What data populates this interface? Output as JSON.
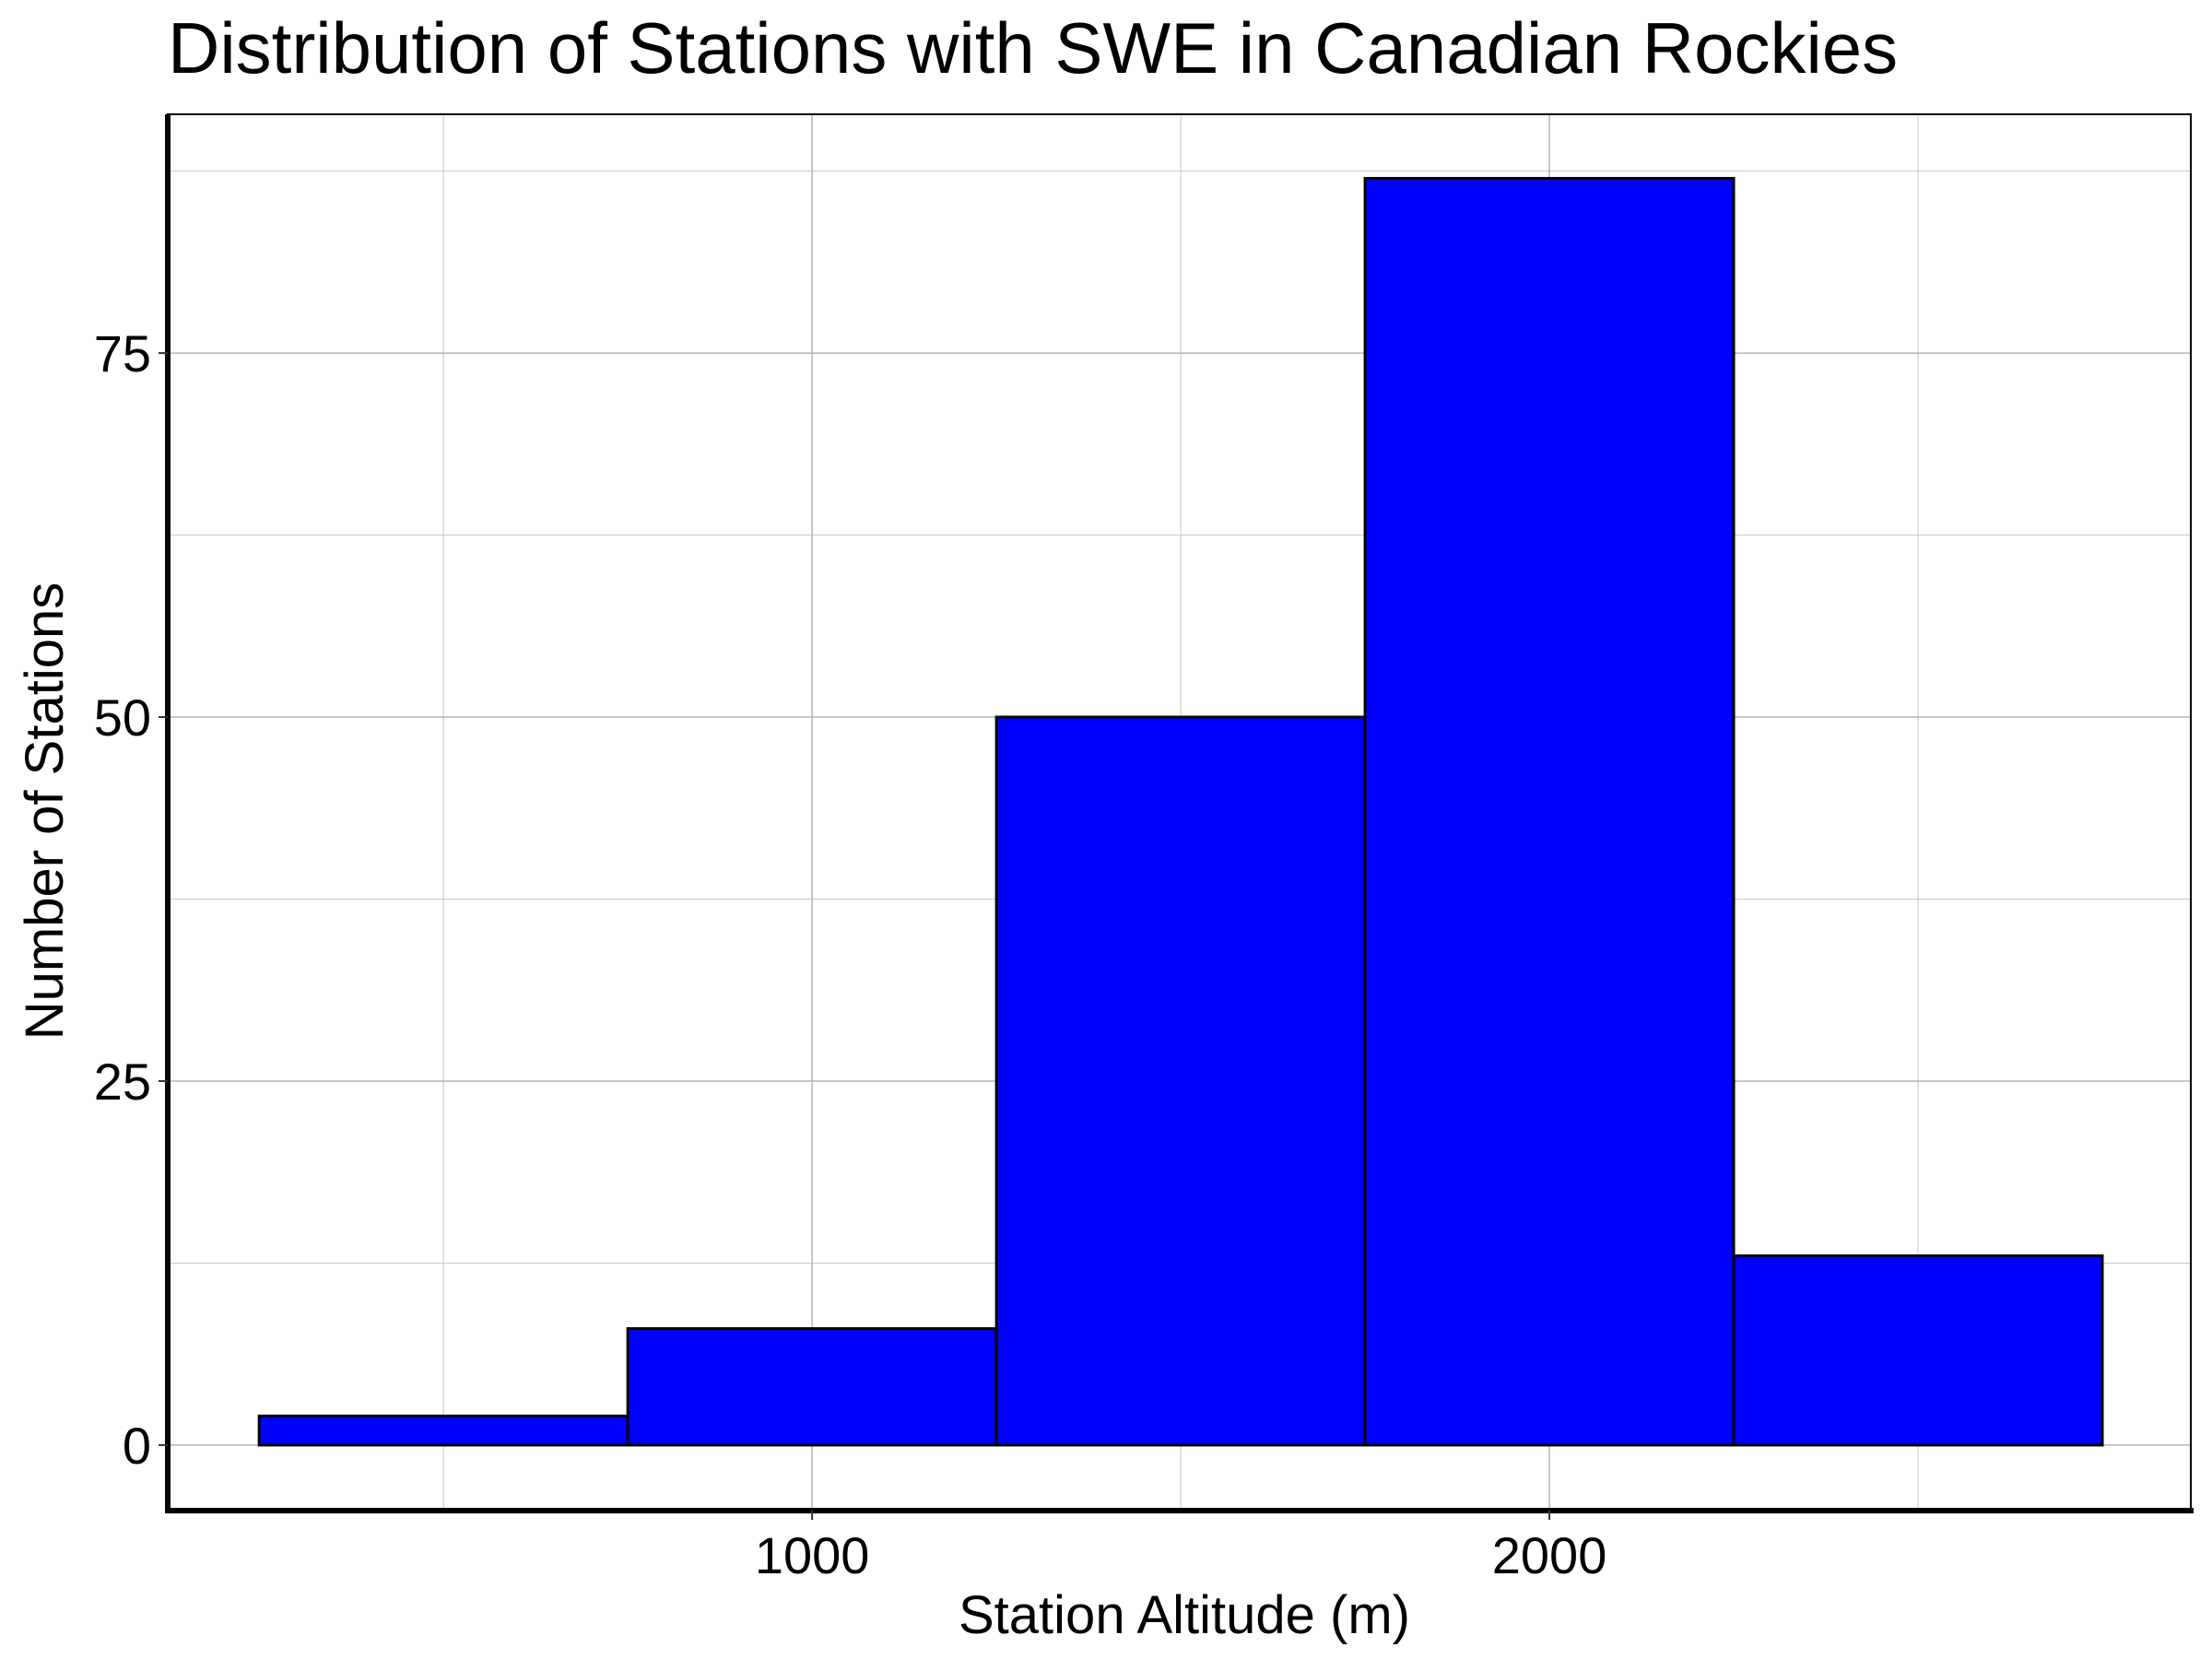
{
  "chart_data": {
    "type": "bar",
    "subtype": "histogram",
    "title": "Distribution of Stations with SWE in Canadian Rockies",
    "xlabel": "Station Altitude (m)",
    "ylabel": "Number of Stations",
    "bins": [
      {
        "start": 250,
        "end": 750,
        "value": 2
      },
      {
        "start": 750,
        "end": 1250,
        "value": 8
      },
      {
        "start": 1250,
        "end": 1750,
        "value": 50
      },
      {
        "start": 1750,
        "end": 2250,
        "value": 87
      },
      {
        "start": 2250,
        "end": 2750,
        "value": 13
      }
    ],
    "xlim": [
      126,
      2870
    ],
    "ylim": [
      -4.5,
      91.4
    ],
    "xticks": [
      1000,
      2000
    ],
    "xtick_labels": [
      "1000",
      "2000"
    ],
    "yticks": [
      0,
      25,
      50,
      75
    ],
    "ytick_labels": [
      "0",
      "25",
      "50",
      "75"
    ],
    "x_minor_gridlines": [
      500,
      1500,
      2500
    ],
    "y_minor_gridlines": [
      12.5,
      37.5,
      62.5,
      87.5
    ],
    "grid": true,
    "bar_color": "#0000ff",
    "bar_edge_color": "#000000",
    "grid_color": "#c8c8c8"
  }
}
